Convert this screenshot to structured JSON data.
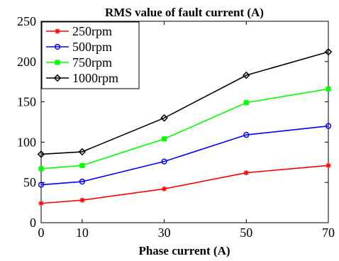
{
  "chart_data": {
    "type": "line",
    "title": "RMS value of fault current (A)",
    "xlabel": "Phase current (A)",
    "ylabel": "",
    "x": [
      0,
      10,
      30,
      50,
      70
    ],
    "x_tick_labels": [
      "0",
      "10",
      "30",
      "50",
      "70"
    ],
    "y_tick_values": [
      0,
      50,
      100,
      150,
      200,
      250
    ],
    "y_tick_labels": [
      "0",
      "50",
      "100",
      "150",
      "200",
      "250"
    ],
    "ylim": [
      0,
      250
    ],
    "grid": false,
    "legend_position": "top-left",
    "series": [
      {
        "name": "250rpm",
        "color": "#ff0000",
        "marker": "asterisk",
        "values": [
          24,
          28,
          42,
          62,
          71
        ]
      },
      {
        "name": "500rpm",
        "color": "#0000ff",
        "marker": "circle",
        "values": [
          47,
          51,
          76,
          109,
          120
        ]
      },
      {
        "name": "750rpm",
        "color": "#00ff00",
        "marker": "square",
        "values": [
          67,
          71,
          104,
          149,
          166
        ]
      },
      {
        "name": "1000rpm",
        "color": "#000000",
        "marker": "diamond",
        "values": [
          85,
          88,
          130,
          183,
          212
        ]
      }
    ]
  }
}
